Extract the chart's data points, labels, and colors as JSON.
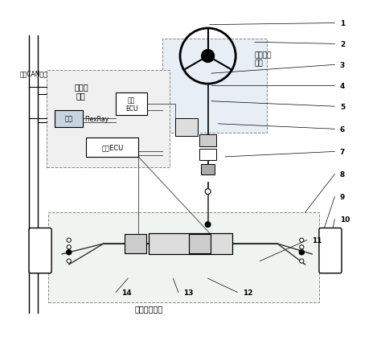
{
  "title": "",
  "bg_color": "#ffffff",
  "line_color": "#000000",
  "box_color": "#ffffff",
  "box_edge": "#000000",
  "light_box_color": "#d0d8e8",
  "fig_width": 4.74,
  "fig_height": 4.35,
  "dpi": 100,
  "labels": {
    "can_bus": "整车CAN总线",
    "controller_module": "控制器\n模块",
    "road_ecu": "路感\nECU",
    "gateway": "网关",
    "flexray": "FlexRay",
    "exec_ecu": "执行ECU",
    "steer_manip": "转向操纵\n模块",
    "steer_exec": "转向执行模块",
    "num1": "1",
    "num2": "2",
    "num3": "3",
    "num4": "4",
    "num5": "5",
    "num6": "6",
    "num7": "7",
    "num8": "8",
    "num9": "9",
    "num10": "10",
    "num11": "11",
    "num12": "12",
    "num13": "13",
    "num14": "14"
  }
}
